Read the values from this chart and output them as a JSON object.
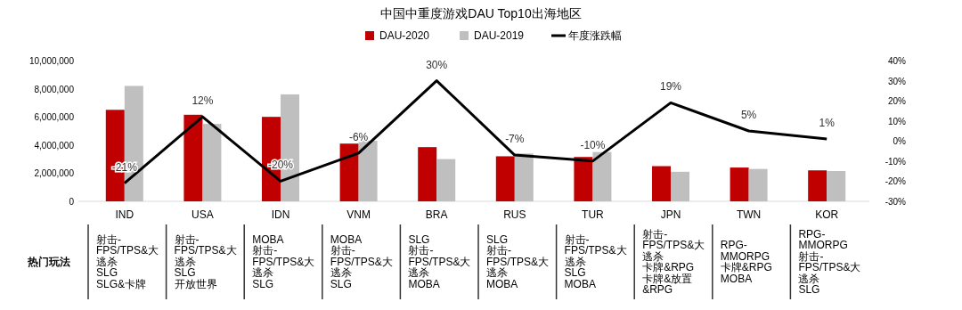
{
  "chart_data": {
    "type": "bar",
    "title": "中国中重度游戏DAU Top10出海地区",
    "categories": [
      "IND",
      "USA",
      "IDN",
      "VNM",
      "BRA",
      "RUS",
      "TUR",
      "JPN",
      "TWN",
      "KOR"
    ],
    "series": [
      {
        "name": "DAU-2020",
        "color": "#c00000",
        "values": [
          6500000,
          6150000,
          6000000,
          4100000,
          3850000,
          3200000,
          3150000,
          2500000,
          2400000,
          2200000
        ]
      },
      {
        "name": "DAU-2019",
        "color": "#bfbfbf",
        "values": [
          8200000,
          5500000,
          7600000,
          4300000,
          3000000,
          3400000,
          3500000,
          2100000,
          2300000,
          2150000
        ]
      },
      {
        "name": "年度涨跌幅",
        "type": "line",
        "axis": "y2",
        "color": "#000000",
        "values": [
          -21,
          12,
          -20,
          -6,
          30,
          -7,
          -10,
          19,
          5,
          1
        ],
        "value_labels": [
          "-21%",
          "12%",
          "-20%",
          "-6%",
          "30%",
          "-7%",
          "-10%",
          "19%",
          "5%",
          "1%"
        ]
      }
    ],
    "ylim": [
      0,
      10000000
    ],
    "yticks": [
      0,
      {
        "value": 2000000,
        "label": "2,000,000"
      },
      {
        "value": 4000000,
        "label": "4,000,000"
      },
      {
        "value": 6000000,
        "label": "6,000,000"
      },
      {
        "value": 8000000,
        "label": "8,000,000"
      },
      {
        "value": 10000000,
        "label": "10,000,000"
      }
    ],
    "y2lim": [
      -30,
      40
    ],
    "y2ticks": [
      {
        "value": -30,
        "label": "-30%"
      },
      {
        "value": -20,
        "label": "-20%"
      },
      {
        "value": -10,
        "label": "-10%"
      },
      {
        "value": 0,
        "label": "0%"
      },
      {
        "value": 10,
        "label": "10%"
      },
      {
        "value": 20,
        "label": "20%"
      },
      {
        "value": 30,
        "label": "30%"
      },
      {
        "value": 40,
        "label": "40%"
      }
    ],
    "legend": "top",
    "annotations": [
      "热门玩法",
      "射击-FPS/TPS&大逃杀",
      "SLG",
      "SLG&卡牌",
      "射击-FPS/TPS&大逃杀",
      "SLG",
      "开放世界",
      "MOBA",
      "射击-FPS/TPS&大逃杀",
      "SLG",
      "MOBA",
      "射击-FPS/TPS&大逃杀",
      "SLG",
      "SLG",
      "射击-FPS/TPS&大逃杀",
      "MOBA",
      "SLG",
      "射击-FPS/TPS&大逃杀",
      "MOBA",
      "射击-FPS/TPS&大逃杀",
      "SLG",
      "MOBA",
      "射击-FPS/TPS&大逃杀",
      "卡牌&RPG",
      "卡牌&放置&RPG",
      "RPG-MMORPG",
      "卡牌&RPG",
      "MOBA",
      "RPG-MMORPG",
      "射击-FPS/TPS&大逃杀",
      "SLG"
    ]
  }
}
